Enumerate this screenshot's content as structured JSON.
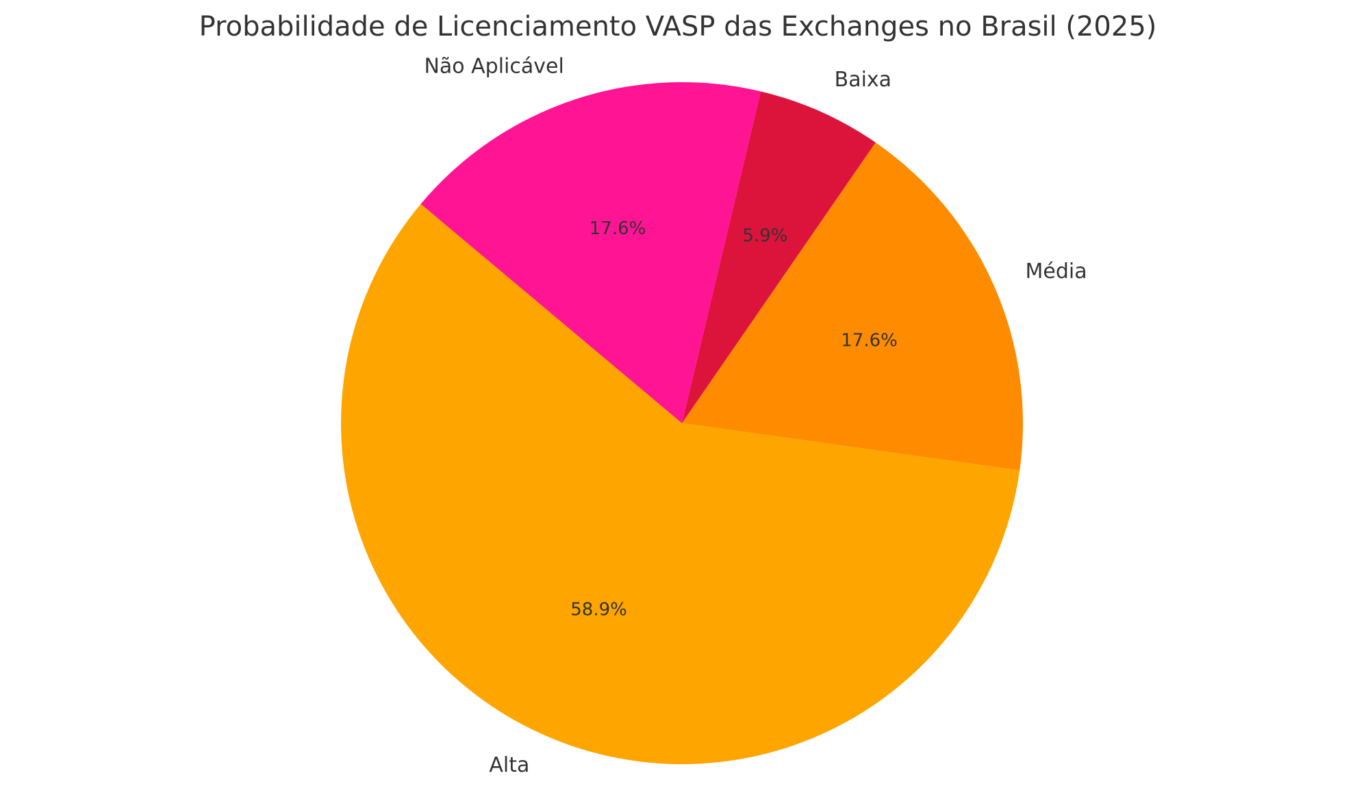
{
  "chart_data": {
    "type": "pie",
    "title": "Probabilidade de Licenciamento VASP das Exchanges no Brasil (2025)",
    "categories": [
      "Alta",
      "Média",
      "Baixa",
      "Não Aplicável"
    ],
    "values": [
      58.9,
      17.6,
      5.9,
      17.6
    ],
    "value_labels": [
      "58.9%",
      "17.6%",
      "5.9%",
      "17.6%"
    ],
    "colors": [
      "#FFA500",
      "#FF8C00",
      "#DC143C",
      "#FF1493"
    ]
  }
}
